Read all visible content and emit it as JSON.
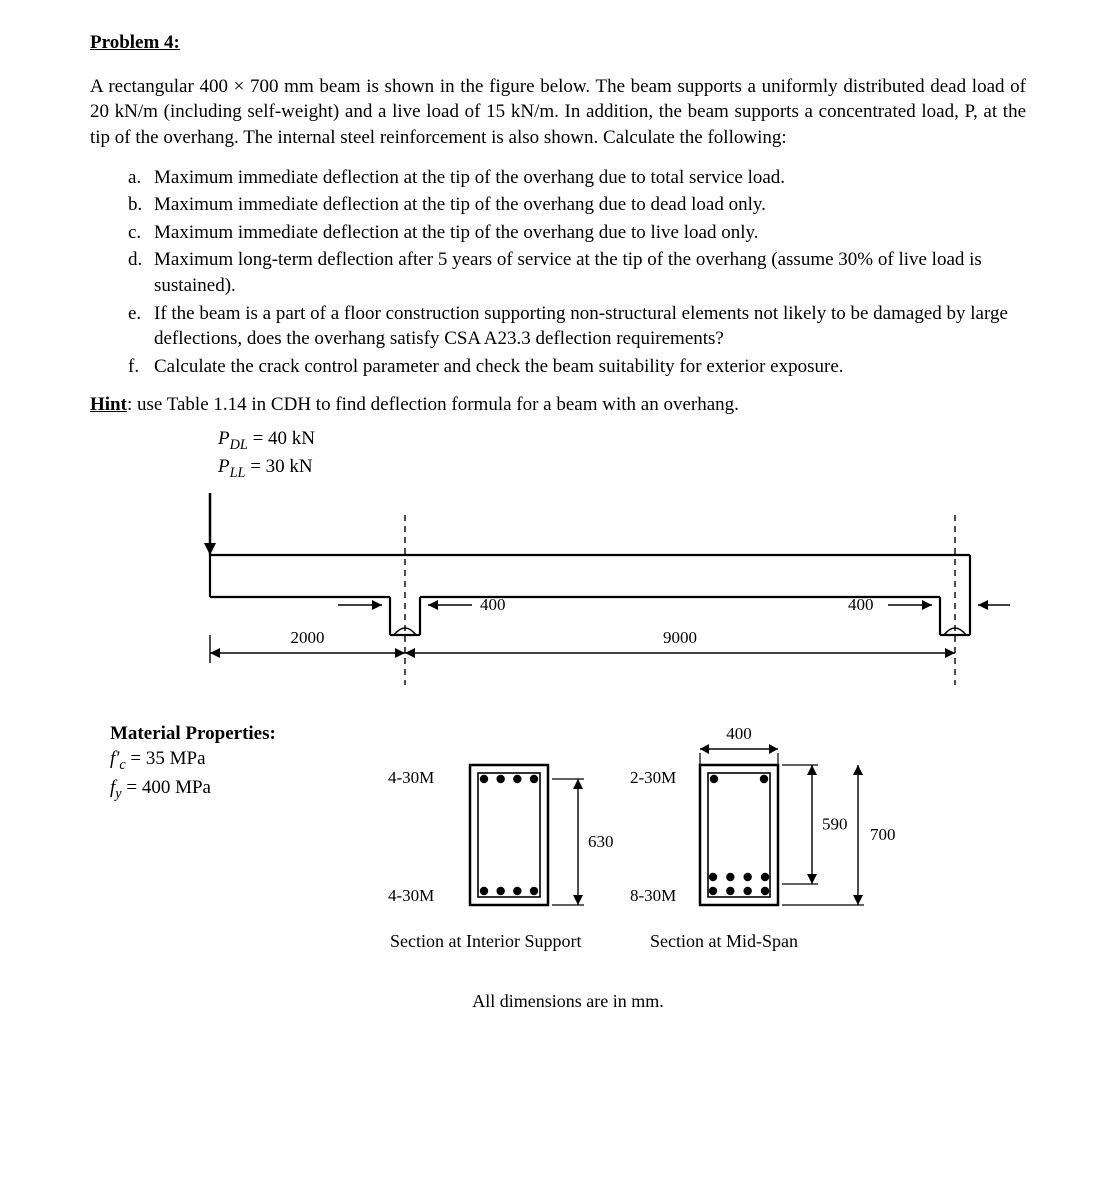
{
  "title": "Problem 4:",
  "intro": "A rectangular 400 × 700 mm beam is shown in the figure below. The beam supports a uniformly distributed dead load of 20 kN/m (including self-weight) and a live load of 15 kN/m. In addition, the beam supports a concentrated load, P, at the tip of the overhang. The internal steel reinforcement is also shown. Calculate the following:",
  "questions": [
    {
      "m": "a.",
      "t": "Maximum immediate deflection at the tip of the overhang due to total service load."
    },
    {
      "m": "b.",
      "t": "Maximum immediate deflection at the tip of the overhang due to dead load only."
    },
    {
      "m": "c.",
      "t": "Maximum immediate deflection at the tip of the overhang due to live load only."
    },
    {
      "m": "d.",
      "t": "Maximum long-term deflection after 5 years of service at the tip of the overhang (assume 30% of live load is sustained)."
    },
    {
      "m": "e.",
      "t": "If the beam is a part of a floor construction supporting non-structural elements not likely to be damaged by large deflections, does the overhang satisfy CSA A23.3 deflection requirements?"
    },
    {
      "m": "f.",
      "t": "Calculate the crack control parameter and check the beam suitability for exterior exposure."
    }
  ],
  "hint_label": "Hint",
  "hint_text": ": use Table 1.14 in CDH to find deflection formula for a beam with an overhang.",
  "loads": {
    "line1_prefix": "P",
    "line1_sub": "DL",
    "line1_val": " = 40 kN",
    "line2_prefix": "P",
    "line2_sub": "LL",
    "line2_val": " = 30 kN"
  },
  "beam": {
    "overhang_len": "2000",
    "span_len": "9000",
    "col_w_left": "400",
    "col_w_right": "400",
    "stroke": "#000000",
    "stroke_w": 2.2,
    "dash": "6,5"
  },
  "materials": {
    "title": "Material Properties:",
    "fc": "f' c = 35 MPa",
    "fy": "f y = 400 MPa"
  },
  "section_interior": {
    "top_label": "4-30M",
    "bot_label": "4-30M",
    "depth_label": "630",
    "caption": "Section at Interior Support",
    "stroke": "#000000",
    "stroke_w": 2.5,
    "bar_r": 4.5
  },
  "section_midspan": {
    "top_label": "2-30M",
    "bot_label": "8-30M",
    "width_label": "400",
    "d_label": "590",
    "h_label": "700",
    "caption": "Section at Mid-Span",
    "stroke": "#000000",
    "stroke_w": 2.5,
    "bar_r": 4.5
  },
  "footer": "All dimensions are in mm."
}
